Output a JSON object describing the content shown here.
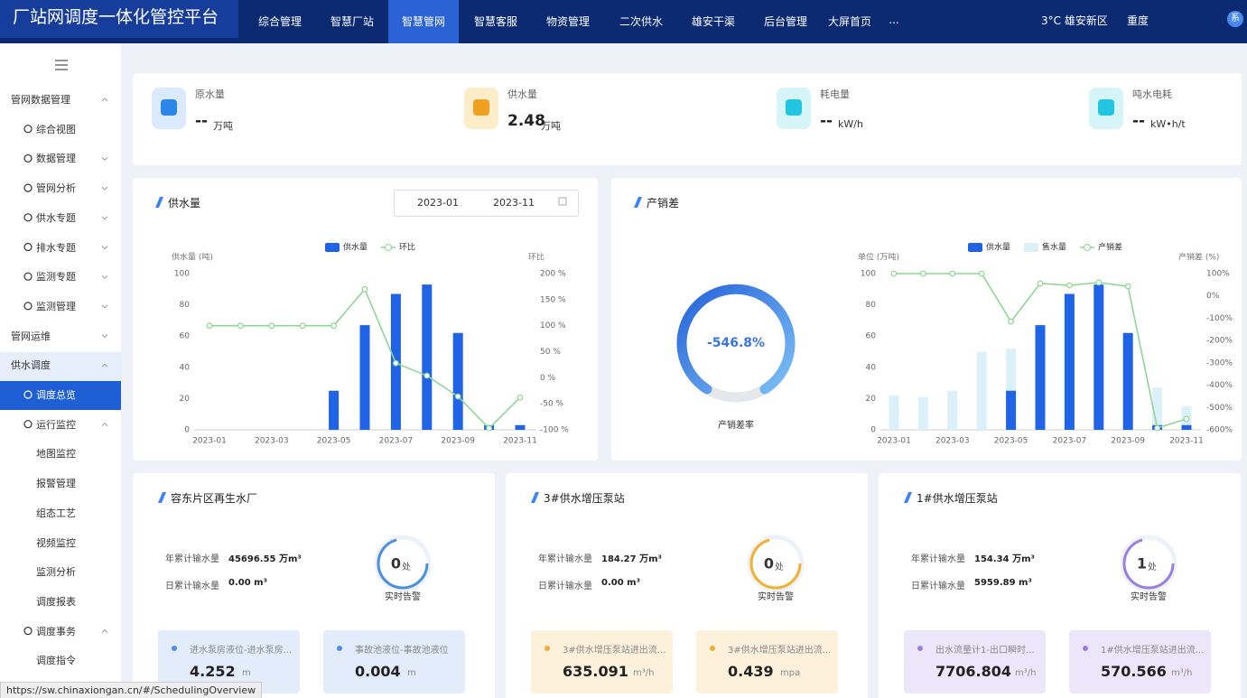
{
  "header": {
    "title": "厂站网调度一体化管控平台",
    "nav": [
      "综合管理",
      "智慧厂站",
      "智慧管网",
      "智慧客服",
      "物资管理",
      "二次供水",
      "雄安干渠",
      "后台管理",
      "大屏首页",
      "..."
    ],
    "weather": "3°C 雄安新区",
    "air": "重度",
    "avatar": "系"
  },
  "sidebar": [
    "管网数据管理",
    "综合视图",
    "数据管理",
    "管网分析",
    "供水专题",
    "排水专题",
    "监测专题",
    "监测管理",
    "管网运维",
    "供水调度",
    "调度总览",
    "运行监控",
    "地图监控",
    "报警管理",
    "组态工艺",
    "视频监控",
    "监测分析",
    "调度报表",
    "调度事务",
    "调度指令"
  ],
  "stats": [
    {
      "label": "原水量",
      "value": "--",
      "unit": "万吨"
    },
    {
      "label": "供水量",
      "value": "2.48",
      "unit": "万吨"
    },
    {
      "label": "耗电量",
      "value": "--",
      "unit": "kW/h"
    },
    {
      "label": "吨水电耗",
      "value": "--",
      "unit": "kW•h/t"
    }
  ],
  "date_range": [
    "2023-01",
    "2023-11"
  ],
  "loss_rate": {
    "value": "-546.8%",
    "label": "产销差率"
  },
  "chart_data": [
    {
      "type": "combo",
      "title": "供水量",
      "y_label": "供水量 (吨)",
      "y2_label": "环比",
      "categories": [
        "2023-01",
        null,
        "2023-03",
        null,
        "2023-05",
        null,
        "2023-07",
        null,
        "2023-09",
        null,
        "2023-11"
      ],
      "series": [
        {
          "name": "供水量",
          "type": "bar",
          "color": "#1f63e6",
          "values": [
            0,
            0,
            0,
            0,
            25,
            67,
            87,
            93,
            62,
            3,
            3
          ]
        },
        {
          "name": "环比",
          "type": "line",
          "axis": "y2",
          "color": "#8fd694",
          "values": [
            100,
            100,
            100,
            100,
            100,
            170,
            28,
            4,
            -36,
            -97,
            -38
          ]
        }
      ],
      "ylim": [
        0,
        100
      ],
      "yticks": [
        0,
        20,
        40,
        60,
        80,
        100
      ],
      "y2lim": [
        -100,
        200
      ],
      "y2ticks": [
        {
          "value": -100,
          "label": "-100 %"
        },
        {
          "value": -50,
          "label": "-50 %"
        },
        {
          "value": 0,
          "label": "0 %"
        },
        {
          "value": 50,
          "label": "50 %"
        },
        {
          "value": 100,
          "label": "100 %"
        },
        {
          "value": 150,
          "label": "150 %"
        },
        {
          "value": 200,
          "label": "200 %"
        }
      ],
      "grid": false
    },
    {
      "type": "combo",
      "title": "产销差",
      "y_label": "单位 (万吨)",
      "y2_label": "产销差 (%)",
      "categories": [
        "2023-01",
        null,
        "2023-03",
        null,
        "2023-05",
        null,
        "2023-07",
        null,
        "2023-09",
        null,
        "2023-11"
      ],
      "series": [
        {
          "name": "供水量",
          "type": "bar",
          "color": "#1f63e6",
          "values": [
            0,
            0,
            0,
            0,
            25,
            67,
            87,
            93,
            62,
            3,
            3
          ]
        },
        {
          "name": "售水量",
          "type": "bar",
          "color": "#dcf0fa",
          "values": [
            22,
            21,
            25,
            50,
            52,
            null,
            null,
            null,
            null,
            27,
            15
          ]
        },
        {
          "name": "产销差",
          "type": "line",
          "axis": "y2",
          "color": "#8fd694",
          "values": [
            100,
            100,
            100,
            100,
            -115,
            56,
            47,
            60,
            43,
            -592,
            -551
          ]
        }
      ],
      "ylim": [
        0,
        100
      ],
      "yticks": [
        0,
        20,
        40,
        60,
        80,
        100
      ],
      "y2lim": [
        -600,
        100
      ],
      "y2ticks": [
        {
          "value": -600,
          "label": "-600%"
        },
        {
          "value": -500,
          "label": "-500%"
        },
        {
          "value": -400,
          "label": "-400%"
        },
        {
          "value": -300,
          "label": "-300%"
        },
        {
          "value": -200,
          "label": "-200%"
        },
        {
          "value": -100,
          "label": "-100%"
        },
        {
          "value": 0,
          "label": "0%"
        },
        {
          "value": 100,
          "label": "100%"
        }
      ],
      "grid": false
    }
  ],
  "stations": [
    {
      "title": "容东片区再生水厂",
      "rows": [
        {
          "label": "年累计输水量",
          "value": "45696.55 万m³"
        },
        {
          "label": "日累计输水量",
          "value": "0.00 m³"
        }
      ],
      "alarm": {
        "count": "0",
        "unit": "处",
        "label": "实时告警"
      },
      "cards": [
        {
          "label": "进水泵房液位-进水泵房...",
          "value": "4.252",
          "unit": "m"
        },
        {
          "label": "事故池液位-事故池液位",
          "value": "0.004",
          "unit": "m"
        }
      ]
    },
    {
      "title": "3#供水增压泵站",
      "rows": [
        {
          "label": "年累计输水量",
          "value": "184.27 万m³"
        },
        {
          "label": "日累计输水量",
          "value": "0.00 m³"
        }
      ],
      "alarm": {
        "count": "0",
        "unit": "处",
        "label": "实时告警"
      },
      "cards": [
        {
          "label": "3#供水增压泵站进出流...",
          "value": "635.091",
          "unit": "m³/h"
        },
        {
          "label": "3#供水增压泵站进出流...",
          "value": "0.439",
          "unit": "mpa"
        }
      ]
    },
    {
      "title": "1#供水增压泵站",
      "rows": [
        {
          "label": "年累计输水量",
          "value": "154.34 万m³"
        },
        {
          "label": "日累计输水量",
          "value": "5959.89 m³"
        }
      ],
      "alarm": {
        "count": "1",
        "unit": "处",
        "label": "实时告警"
      },
      "cards": [
        {
          "label": "出水流量计1-出口瞬时...",
          "value": "7706.804",
          "unit": "m³/h"
        },
        {
          "label": "1#供水增压泵站进出流...",
          "value": "570.566",
          "unit": "m³/h"
        }
      ]
    }
  ],
  "status_url": "https://sw.chinaxiongan.cn/#/SchedulingOverview"
}
